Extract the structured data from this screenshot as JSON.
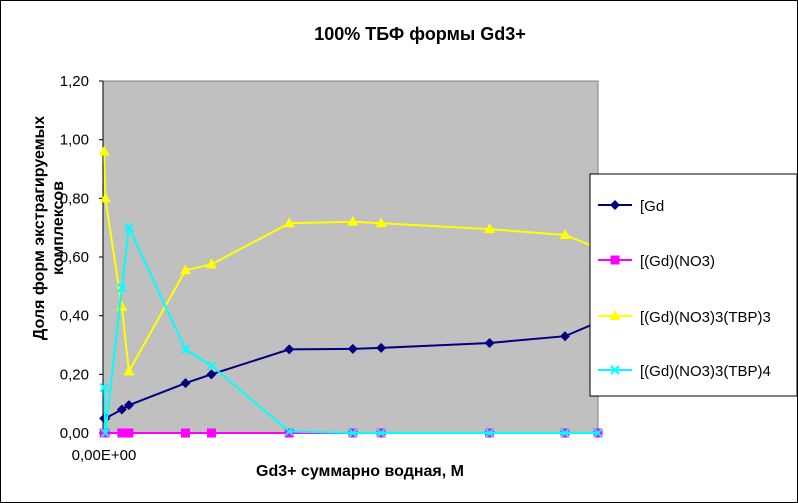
{
  "chart_data": {
    "type": "line",
    "title": "100%  ТБФ  формы Gd3+",
    "xlabel": "Gd3+ суммарно   водная, М",
    "ylabel_line1": "Доля форм экстрагируемых",
    "ylabel_line2": "комплексов",
    "x_tick_label": "0,00E+00",
    "y_ticks": [
      "0,00",
      "0,20",
      "0,40",
      "0,60",
      "0,80",
      "1,00",
      "1,20"
    ],
    "ylim": [
      0,
      1.2
    ],
    "xlim": [
      0,
      0.21
    ],
    "grid": false,
    "plot_background": "#c0c0c0",
    "legend_position": "right",
    "x": [
      0.0005,
      0.001,
      0.008,
      0.011,
      0.035,
      0.046,
      0.079,
      0.106,
      0.118,
      0.164,
      0.196,
      0.21
    ],
    "series": [
      {
        "name": "[Gd",
        "color": "#000080",
        "marker": "diamond",
        "values": [
          0.05,
          0.05,
          0.08,
          0.095,
          0.17,
          0.2,
          0.285,
          0.287,
          0.29,
          0.307,
          0.33,
          0.378
        ]
      },
      {
        "name": "[(Gd)(NO3)",
        "color": "#ff00ff",
        "marker": "square",
        "values": [
          0.0,
          0.0,
          0.0,
          0.0,
          0.0,
          0.0,
          0.0,
          0.0,
          0.0,
          0.0,
          0.0,
          0.0
        ]
      },
      {
        "name": "[(Gd)(NO3)3(TBP)3",
        "color": "#ffff00",
        "marker": "triangle",
        "values": [
          0.96,
          0.8,
          0.43,
          0.21,
          0.555,
          0.575,
          0.715,
          0.72,
          0.715,
          0.695,
          0.675,
          0.63
        ]
      },
      {
        "name": "[(Gd)(NO3)3(TBP)4",
        "color": "#00ffff",
        "marker": "x",
        "values": [
          0.155,
          0.0,
          0.495,
          0.7,
          0.285,
          0.23,
          0.005,
          0.0,
          0.0,
          0.0,
          0.0,
          0.0
        ]
      }
    ]
  }
}
